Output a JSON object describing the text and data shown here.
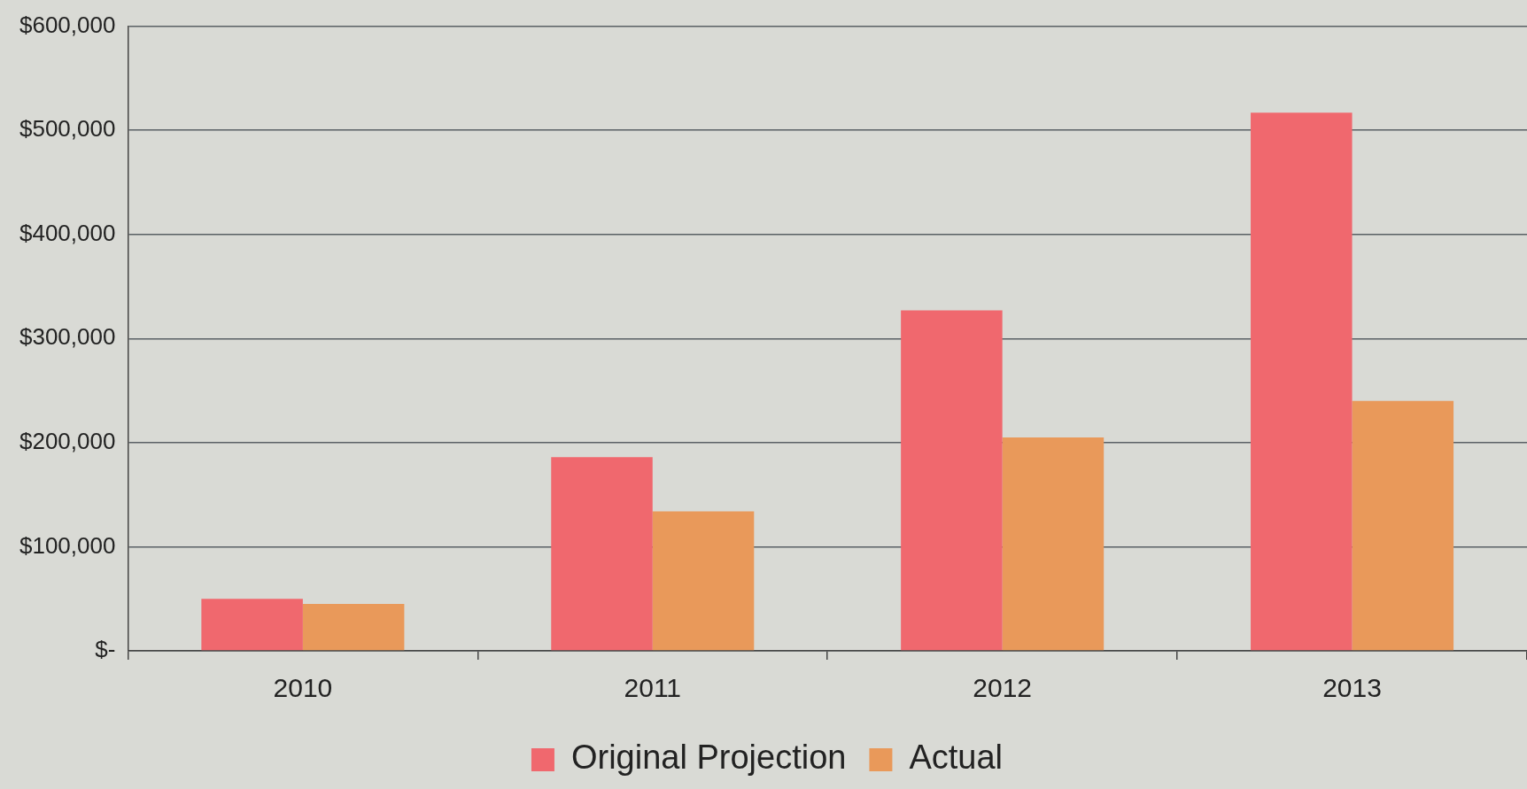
{
  "chart_data": {
    "type": "bar",
    "categories": [
      "2010",
      "2011",
      "2012",
      "2013"
    ],
    "series": [
      {
        "name": "Original Projection",
        "color": "#f0686e",
        "values": [
          50000,
          186000,
          327000,
          517000
        ]
      },
      {
        "name": "Actual",
        "color": "#e9995a",
        "values": [
          45000,
          134000,
          205000,
          240000
        ]
      }
    ],
    "ylim": [
      0,
      600000
    ],
    "yticks": [
      {
        "value": 0,
        "label": "$-"
      },
      {
        "value": 100000,
        "label": "$100,000"
      },
      {
        "value": 200000,
        "label": "$200,000"
      },
      {
        "value": 300000,
        "label": "$300,000"
      },
      {
        "value": 400000,
        "label": "$400,000"
      },
      {
        "value": 500000,
        "label": "$500,000"
      },
      {
        "value": 600000,
        "label": "$600,000"
      }
    ],
    "grid": "y",
    "legend": "bottom"
  }
}
